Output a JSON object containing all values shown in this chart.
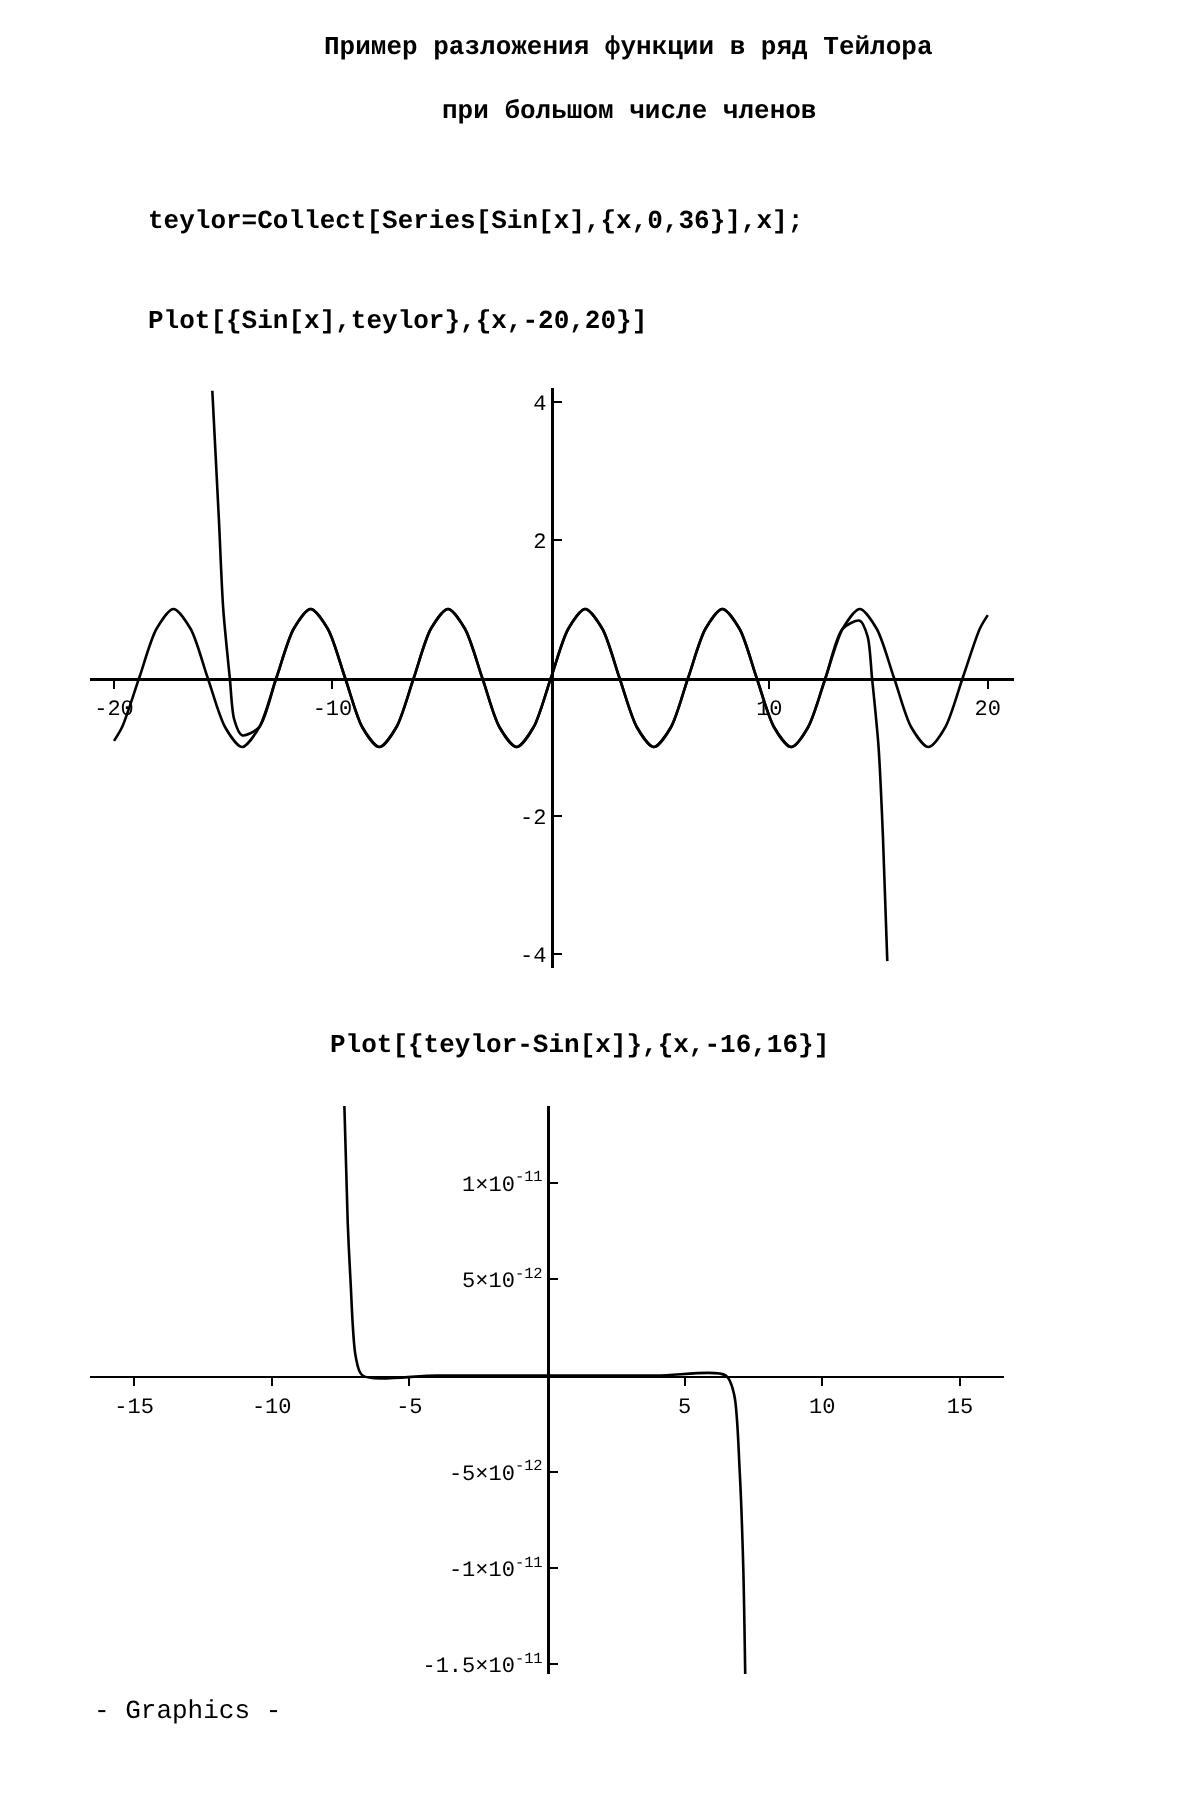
{
  "chart_data": [
    {
      "type": "line",
      "title": "Пример разложения функции в ряд Тейлора",
      "subtitle": "при большом числе членов",
      "annotations": [
        "teylor=Collect[Series[Sin[x],{x,0,36}],x];",
        "Plot[{Sin[x],teylor},{x,-20,20}]"
      ],
      "xlim": [
        -21.1,
        21.2
      ],
      "ylim": [
        -4.2,
        4.2
      ],
      "xticks": [
        -20,
        -10,
        10,
        20
      ],
      "yticks": [
        -4,
        -2,
        2,
        4
      ],
      "grid": false,
      "marker": "none",
      "line_style": "solid",
      "series": [
        {
          "color": "#000000",
          "x": [
            -20,
            -19.63,
            -18.85,
            -18.06,
            -17.28,
            -16.49,
            -15.71,
            -14.92,
            -14.14,
            -13.35,
            -12.57,
            -11.78,
            -11.0,
            -10.21,
            -9.42,
            -8.64,
            -7.85,
            -7.07,
            -6.28,
            -5.5,
            -4.71,
            -3.93,
            -3.14,
            -2.36,
            -1.57,
            -0.79,
            0,
            0.79,
            1.57,
            2.36,
            3.14,
            3.93,
            4.71,
            5.5,
            6.28,
            7.07,
            7.85,
            8.64,
            9.42,
            10.21,
            11.0,
            11.78,
            12.57,
            13.35,
            14.14,
            14.92,
            15.71,
            16.49,
            17.28,
            18.06,
            18.85,
            19.63,
            20
          ],
          "values": [
            -0.91,
            -0.71,
            0,
            0.71,
            1,
            0.71,
            0,
            -0.71,
            -1,
            -0.71,
            0,
            0.71,
            1,
            0.71,
            0,
            -0.71,
            -1,
            -0.71,
            0,
            0.71,
            1,
            0.71,
            0,
            -0.71,
            -1,
            -0.71,
            0,
            0.71,
            1,
            0.71,
            0,
            -0.71,
            -1,
            -0.71,
            0,
            0.71,
            1,
            0.71,
            0,
            -0.71,
            -1,
            -0.71,
            0,
            0.71,
            1,
            0.71,
            0,
            -0.71,
            -1,
            -0.71,
            0,
            0.71,
            0.91
          ]
        },
        {
          "color": "#000000",
          "x": [
            -15.5,
            -15.2,
            -15.0,
            -14.7,
            -14.5,
            -14.14,
            -13.35,
            -12.57,
            -11.78,
            -11.0,
            -10.21,
            -9.42,
            -8.64,
            -7.85,
            -7.07,
            -6.28,
            -5.5,
            -4.71,
            -3.93,
            -3.14,
            -2.36,
            -1.57,
            -0.79,
            0,
            0.79,
            1.57,
            2.36,
            3.14,
            3.93,
            4.71,
            5.5,
            6.28,
            7.07,
            7.85,
            8.64,
            9.42,
            10.21,
            11.0,
            11.78,
            12.57,
            13.35,
            14.14,
            14.5,
            14.7,
            15.0,
            15.2,
            15.4
          ],
          "values": [
            4.16,
            2.3,
            1.0,
            0,
            -0.6,
            -0.83,
            -0.71,
            0,
            0.71,
            1,
            0.71,
            0,
            -0.71,
            -1,
            -0.71,
            0,
            0.71,
            1,
            0.71,
            0,
            -0.71,
            -1,
            -0.71,
            0,
            0.71,
            1,
            0.71,
            0,
            -0.71,
            -1,
            -0.71,
            0,
            0.71,
            1,
            0.71,
            0,
            -0.71,
            -1,
            -0.71,
            0,
            0.71,
            0.83,
            0.6,
            0,
            -1.0,
            -2.3,
            -4.1
          ]
        }
      ]
    },
    {
      "type": "line",
      "title": "Plot[{teylor-Sin[x]},{x,-16,16}]",
      "annotations": [
        "- Graphics -"
      ],
      "xlim": [
        -16.6,
        16.6
      ],
      "ylim": [
        -1.55e-11,
        1.4e-11
      ],
      "xticks": [
        -15,
        -10,
        -5,
        5,
        10,
        15
      ],
      "yticks": [
        {
          "value": 1e-11,
          "label": "1×10$^{-11}$"
        },
        {
          "value": 5e-12,
          "label": "5×10$^{-12}$"
        },
        {
          "value": -5e-12,
          "label": "-5×10$^{-12}$"
        },
        {
          "value": -1e-11,
          "label": "-1×10$^{-11}$"
        },
        {
          "value": -1.5e-11,
          "label": "-1.5×10$^{-11}$"
        }
      ],
      "grid": false,
      "marker": "none",
      "line_style": "solid",
      "series": [
        {
          "color": "#000000",
          "x": [
            -7.36,
            -7.24,
            -7.14,
            -6.95,
            -6.7,
            -4,
            0,
            4,
            6.5,
            6.8,
            7.0,
            7.13,
            7.2
          ],
          "values": [
            1.4e-11,
            8e-12,
            5e-12,
            1e-12,
            0,
            0,
            0,
            0,
            0,
            -1e-12,
            -5e-12,
            -1e-11,
            -1.55e-11
          ]
        }
      ]
    }
  ]
}
